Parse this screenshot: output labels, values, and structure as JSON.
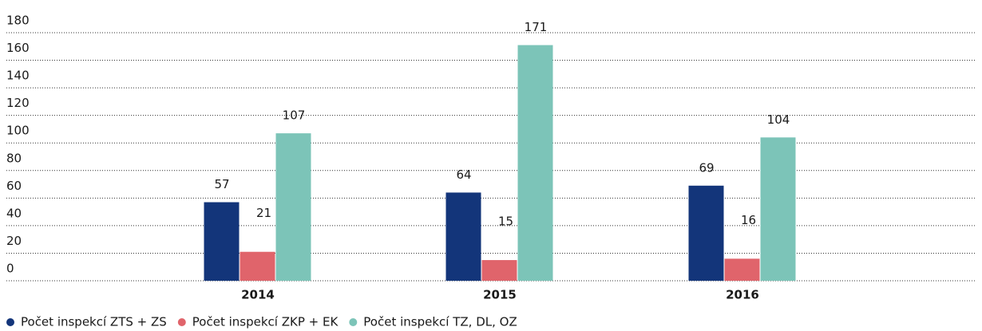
{
  "chart_data": {
    "type": "bar",
    "categories": [
      "2014",
      "2015",
      "2016"
    ],
    "series": [
      {
        "name": "Počet inspekcí ZTS + ZS",
        "color": "#13357a",
        "values": [
          57,
          64,
          69
        ]
      },
      {
        "name": "Počet inspekcí ZKP + EK",
        "color": "#e0646b",
        "values": [
          21,
          15,
          16
        ]
      },
      {
        "name": "Počet inspekcí TZ, DL, OZ",
        "color": "#7cc4b8",
        "values": [
          107,
          171,
          104
        ]
      }
    ],
    "ylim": [
      0,
      180
    ],
    "yticks": [
      0,
      20,
      40,
      60,
      80,
      100,
      120,
      140,
      160,
      180
    ],
    "grid": true,
    "legend": "bottom"
  }
}
